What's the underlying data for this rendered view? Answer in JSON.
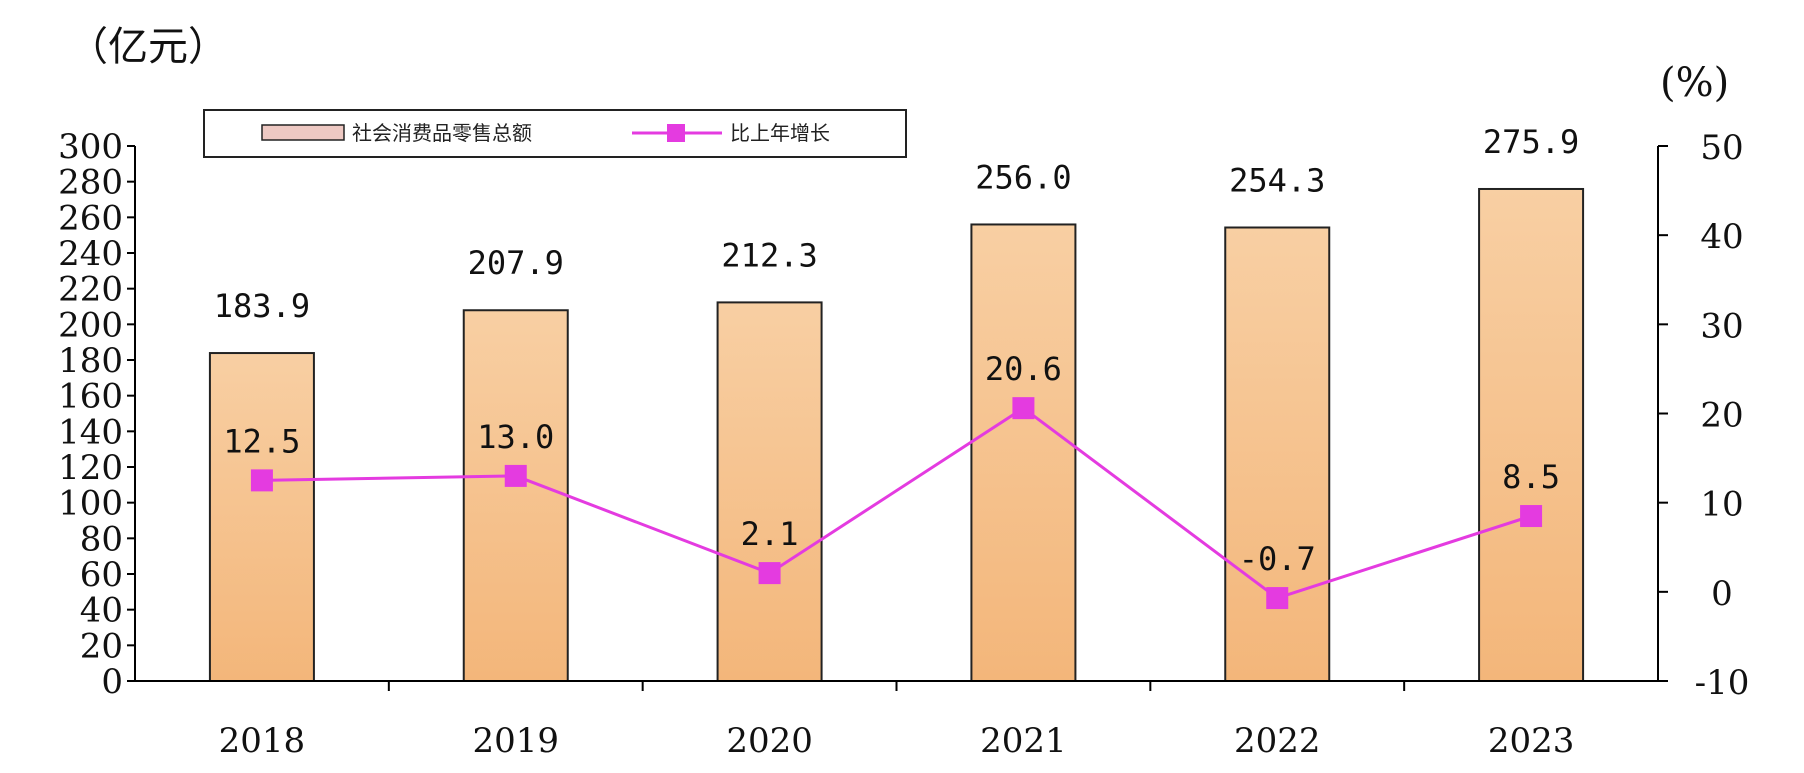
{
  "chart_data": {
    "type": "bar",
    "categories": [
      "2018",
      "2019",
      "2020",
      "2021",
      "2022",
      "2023"
    ],
    "series": [
      {
        "name": "社会消费品零售总额",
        "type": "bar",
        "axis": "left",
        "values": [
          183.9,
          207.9,
          212.3,
          256.0,
          254.3,
          275.9
        ],
        "labels": [
          "183.9",
          "207.9",
          "212.3",
          "256.0",
          "254.3",
          "275.9"
        ],
        "color": "#f6c08a"
      },
      {
        "name": "比上年增长",
        "type": "line",
        "axis": "right",
        "values": [
          12.5,
          13.0,
          2.1,
          20.6,
          -0.7,
          8.5
        ],
        "labels": [
          "12.5",
          "13.0",
          "2.1",
          "20.6",
          "-0.7",
          "8.5"
        ],
        "color": "#e43be0"
      }
    ],
    "left_axis": {
      "unit": "（亿元）",
      "range": [
        0,
        300
      ],
      "ticks": [
        0,
        20,
        40,
        60,
        80,
        100,
        120,
        140,
        160,
        180,
        200,
        220,
        240,
        260,
        280,
        300
      ]
    },
    "right_axis": {
      "unit": "(%)",
      "range": [
        -10,
        50
      ],
      "ticks": [
        -10,
        0,
        10,
        20,
        30,
        40,
        50
      ]
    },
    "legend_position": "top-left",
    "grid": false
  }
}
